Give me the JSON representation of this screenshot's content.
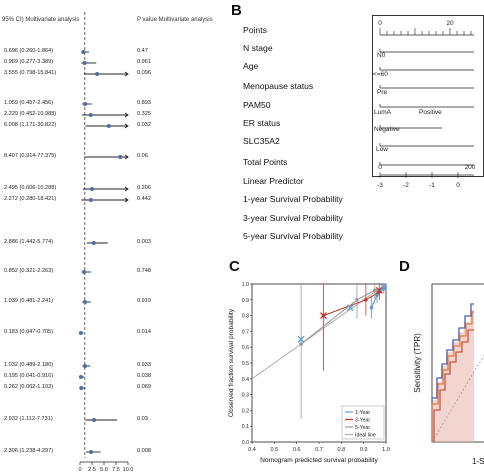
{
  "panel_a": {
    "header_ci": "95% CI) Multivariate analysis",
    "header_p": "P value Multivariate analysis",
    "rows": [
      {
        "ci": "0.696 (0.260-1.864)",
        "p": "0.47",
        "est": 0.696,
        "lo": 0.26,
        "hi": 1.864
      },
      {
        "ci": "0.969 (0.277-3.389)",
        "p": "0.961",
        "est": 0.969,
        "lo": 0.277,
        "hi": 3.389
      },
      {
        "ci": "3.555 (0.798-15.841)",
        "p": "0.096",
        "est": 3.555,
        "lo": 0.798,
        "hi": 15.841
      },
      {
        "ci": "1.059 (0.457-2.456)",
        "p": "0.893",
        "est": 1.059,
        "lo": 0.457,
        "hi": 2.456
      },
      {
        "ci": "2.229 (0.452-10.988)",
        "p": "0.325",
        "est": 2.229,
        "lo": 0.452,
        "hi": 10.988
      },
      {
        "ci": "6.008 (1.171-30.822)",
        "p": "0.032",
        "est": 6.008,
        "lo": 1.171,
        "hi": 30.822
      },
      {
        "ci": "8.407 (0.914-77.375)",
        "p": "0.06",
        "est": 8.407,
        "lo": 0.914,
        "hi": 77.375
      },
      {
        "ci": "2.495 (0.606-10.288)",
        "p": "0.206",
        "est": 2.495,
        "lo": 0.606,
        "hi": 10.288
      },
      {
        "ci": "2.272 (0.280-18.421)",
        "p": "0.442",
        "est": 2.272,
        "lo": 0.28,
        "hi": 18.421
      },
      {
        "ci": "2.886 (1.442-5.774)",
        "p": "0.003",
        "est": 2.886,
        "lo": 1.442,
        "hi": 5.774
      },
      {
        "ci": "0.852 (0.321-2.263)",
        "p": "0.748",
        "est": 0.852,
        "lo": 0.321,
        "hi": 2.263
      },
      {
        "ci": "1.039 (0.481-2.241)",
        "p": "0.919",
        "est": 1.039,
        "lo": 0.481,
        "hi": 2.241
      },
      {
        "ci": "0.183 (0.047-0.705)",
        "p": "0.014",
        "est": 0.183,
        "lo": 0.047,
        "hi": 0.705
      },
      {
        "ci": "1.032 (0.489-2.180)",
        "p": "0.933",
        "est": 1.032,
        "lo": 0.489,
        "hi": 2.18
      },
      {
        "ci": "0.195 (0.041-0.916)",
        "p": "0.038",
        "est": 0.195,
        "lo": 0.041,
        "hi": 0.916
      },
      {
        "ci": "0.262 (0.062-1.103)",
        "p": "0.069",
        "est": 0.262,
        "lo": 0.062,
        "hi": 1.103
      },
      {
        "ci": "2.932 (1.112-7.731)",
        "p": "0.03",
        "est": 2.932,
        "lo": 1.112,
        "hi": 7.731
      },
      {
        "ci": "2.306 (1.238-4.297)",
        "p": "0.008",
        "est": 2.306,
        "lo": 1.238,
        "hi": 4.297
      }
    ],
    "axis_ticks": [
      "0",
      "2.5",
      "5.0",
      "7.5",
      "10.0"
    ],
    "axis_tick_values": [
      0,
      2.5,
      5.0,
      7.5,
      10.0
    ],
    "reference_value": 1
  },
  "panel_b": {
    "letter": "B",
    "labels": [
      "Points",
      "N stage",
      "Age",
      "Menopause status",
      "PAM50",
      "ER status",
      "SLC35A2",
      "Total Points",
      "Linear Predictor",
      "1-year Survival Probability",
      "3-year Survival Probability",
      "5-year Survival Probability"
    ],
    "points_ticks": [
      "0",
      "20"
    ],
    "points_tick_values": [
      0,
      20
    ],
    "n_stage_text": "N0",
    "age_text": "<=60",
    "menopause_text": "Pre",
    "pam50_text": "LumA",
    "er_text_positive": "Positive",
    "er_text_negative": "Negative",
    "slc_text": "Low",
    "lp_ticks": [
      "-3",
      "-2",
      "-1",
      "0"
    ],
    "lp_tick_values": [
      -3,
      -2,
      -1,
      0
    ],
    "tp_ticks": [
      "0",
      "200"
    ],
    "tp_tick_values": [
      0,
      200
    ]
  },
  "panel_c": {
    "letter": "C",
    "chart_data": {
      "type": "line",
      "xlabel": "Nomogram predicted survival probability",
      "ylabel": "Observed fraction survival probability",
      "xlim": [
        0.4,
        1.0
      ],
      "ylim": [
        0.0,
        1.0
      ],
      "x_ticks": [
        "0.4",
        "0.5",
        "0.6",
        "0.7",
        "0.8",
        "0.9",
        "1.0"
      ],
      "x_tick_values": [
        0.4,
        0.5,
        0.6,
        0.7,
        0.8,
        0.9,
        1.0
      ],
      "y_ticks": [
        "0.0",
        "0.1",
        "0.2",
        "0.3",
        "0.4",
        "0.5",
        "0.6",
        "0.7",
        "0.8",
        "0.9",
        "1.0"
      ],
      "y_tick_values": [
        0.0,
        0.1,
        0.2,
        0.3,
        0.4,
        0.5,
        0.6,
        0.7,
        0.8,
        0.9,
        1.0
      ],
      "legend": [
        "1-Year",
        "3-Year",
        "5-Year",
        "Ideal line"
      ],
      "legend_position": "bottom-right",
      "series": [
        {
          "name": "1-Year",
          "color": "#5b9bd5",
          "x": [
            0.935,
            0.96,
            0.99
          ],
          "y": [
            0.85,
            0.93,
            0.97
          ],
          "lo": [
            0.78,
            0.88,
            0.94
          ],
          "hi": [
            0.92,
            0.98,
            1.0
          ]
        },
        {
          "name": "3-Year",
          "color": "#c0392b",
          "x": [
            0.72,
            0.91,
            0.97
          ],
          "y": [
            0.8,
            0.9,
            0.95
          ],
          "lo": [
            0.45,
            0.8,
            0.9
          ],
          "hi": [
            1.0,
            1.0,
            1.0
          ]
        },
        {
          "name": "5-Year",
          "color": "#999999",
          "x": [
            0.62,
            0.87,
            0.95
          ],
          "y": [
            0.62,
            0.9,
            0.96
          ],
          "lo": [
            0.15,
            0.78,
            0.9
          ],
          "hi": [
            1.0,
            1.0,
            1.0
          ]
        }
      ],
      "markers": [
        {
          "series": "3-Year",
          "x": 0.72,
          "y": 0.8
        },
        {
          "series": "1-Year",
          "x": 0.62,
          "y": 0.65
        },
        {
          "series": "1-Year",
          "x": 0.84,
          "y": 0.85
        },
        {
          "series": "3-Year",
          "x": 0.97,
          "y": 0.96
        },
        {
          "series": "1-Year",
          "x": 0.99,
          "y": 0.98
        }
      ]
    }
  },
  "panel_d": {
    "letter": "D",
    "ylabel": "Sensitivity (TPR)",
    "xlabel_partial": "1-S"
  }
}
